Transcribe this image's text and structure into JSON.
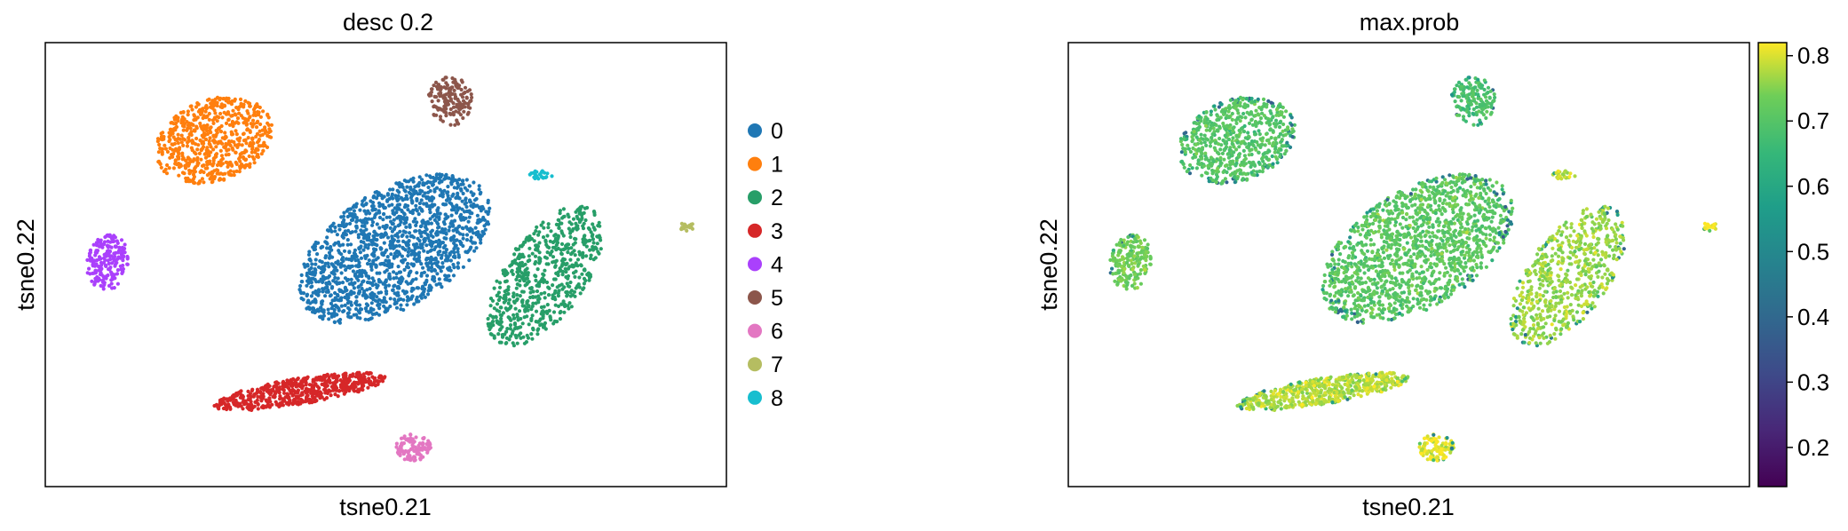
{
  "chart_data": [
    {
      "type": "scatter",
      "title": "desc 0.2",
      "xlabel": "tsne0.21",
      "ylabel": "tsne0.22",
      "ticks": "none",
      "grid": false,
      "legend_position": "right",
      "legend": [
        {
          "label": "0",
          "color": "#1f77b4"
        },
        {
          "label": "1",
          "color": "#ff7f0e"
        },
        {
          "label": "2",
          "color": "#279e68"
        },
        {
          "label": "3",
          "color": "#d62728"
        },
        {
          "label": "4",
          "color": "#aa40fc"
        },
        {
          "label": "5",
          "color": "#8c564b"
        },
        {
          "label": "6",
          "color": "#e377c2"
        },
        {
          "label": "7",
          "color": "#b5bd61"
        },
        {
          "label": "8",
          "color": "#17becf"
        }
      ]
    },
    {
      "type": "scatter",
      "title": "max.prob",
      "xlabel": "tsne0.21",
      "ylabel": "tsne0.22",
      "ticks": "none",
      "grid": false,
      "colormap": "viridis",
      "colorbar": {
        "min": 0.14,
        "max": 0.82,
        "ticks": [
          "0.8",
          "0.7",
          "0.6",
          "0.5",
          "0.4",
          "0.3",
          "0.2"
        ],
        "tick_values": [
          0.8,
          0.7,
          0.6,
          0.5,
          0.4,
          0.3,
          0.2
        ]
      }
    }
  ]
}
